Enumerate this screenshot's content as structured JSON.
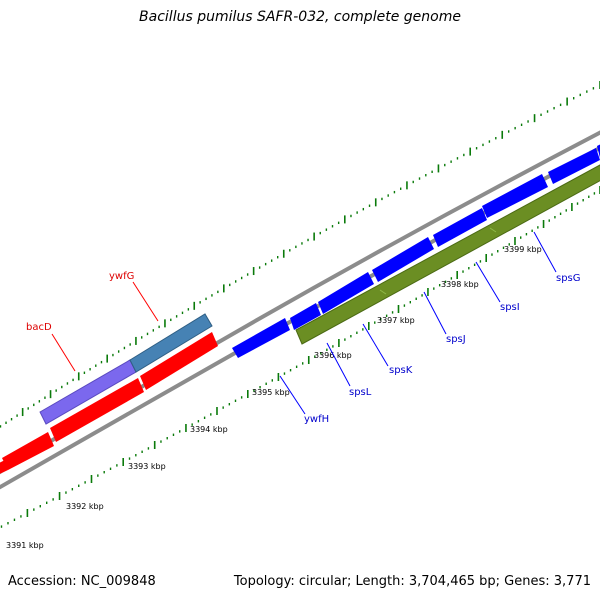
{
  "title": "Bacillus pumilus SAFR-032, complete genome",
  "footer": {
    "accession": "Accession: NC_009848",
    "stats": "Topology: circular; Length: 3,704,465 bp; Genes: 3,771"
  },
  "colors": {
    "forward_red": "#ff0000",
    "blue_gene": "#0000ff",
    "purple_gene": "#7b68ee",
    "steel_gene": "#4682b4",
    "olive_gene": "#6b8e23",
    "backbone": "#8c8c8c",
    "tick_green": "#0a7a0a",
    "red_label": "#dd0000",
    "blue_label": "#0000cc"
  },
  "scale_labels": [
    "3391 kbp",
    "3392 kbp",
    "3393 kbp",
    "3394 kbp",
    "3395 kbp",
    "3396 kbp",
    "3397 kbp",
    "3398 kbp",
    "3399 kbp"
  ],
  "gene_labels": [
    {
      "id": "bacD",
      "text": "bacD",
      "color": "red"
    },
    {
      "id": "ywfG",
      "text": "ywfG",
      "color": "red"
    },
    {
      "id": "ywfH",
      "text": "ywfH",
      "color": "blue"
    },
    {
      "id": "spsL",
      "text": "spsL",
      "color": "blue"
    },
    {
      "id": "spsK",
      "text": "spsK",
      "color": "blue"
    },
    {
      "id": "spsJ",
      "text": "spsJ",
      "color": "blue"
    },
    {
      "id": "spsI",
      "text": "spsI",
      "color": "blue"
    },
    {
      "id": "spsG",
      "text": "spsG",
      "color": "blue"
    }
  ]
}
